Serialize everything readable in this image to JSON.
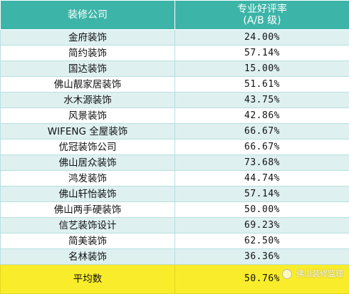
{
  "table": {
    "header": {
      "company": "装修公司",
      "rating_line1": "专业好评率",
      "rating_line2": "(A/B 级)"
    },
    "rows": [
      {
        "company": "金府装饰",
        "rating": "24.00%"
      },
      {
        "company": "简约装饰",
        "rating": "57.14%"
      },
      {
        "company": "国达装饰",
        "rating": "15.00%"
      },
      {
        "company": "佛山靓家居装饰",
        "rating": "51.61%"
      },
      {
        "company": "水木源装饰",
        "rating": "43.75%"
      },
      {
        "company": "风景装饰",
        "rating": "42.86%"
      },
      {
        "company": "WIFENG 全屋装饰",
        "rating": "66.67%"
      },
      {
        "company": "优冠装饰公司",
        "rating": "66.67%"
      },
      {
        "company": "佛山居众装饰",
        "rating": "73.68%"
      },
      {
        "company": "鸿发装饰",
        "rating": "44.74%"
      },
      {
        "company": "佛山轩怡装饰",
        "rating": "57.14%"
      },
      {
        "company": "佛山两手硬装饰",
        "rating": "50.00%"
      },
      {
        "company": "信艺装饰设计",
        "rating": "69.23%"
      },
      {
        "company": "简美装饰",
        "rating": "62.50%"
      },
      {
        "company": "名林装饰",
        "rating": "36.36%"
      }
    ],
    "average": {
      "label": "平均数",
      "rating": "50.76%"
    }
  },
  "watermark": {
    "text": "佛山装修监理"
  },
  "colors": {
    "header_bg": "#3db4a8",
    "row_alt_bg": "#def0f0",
    "average_bg": "#f9ec2a"
  }
}
